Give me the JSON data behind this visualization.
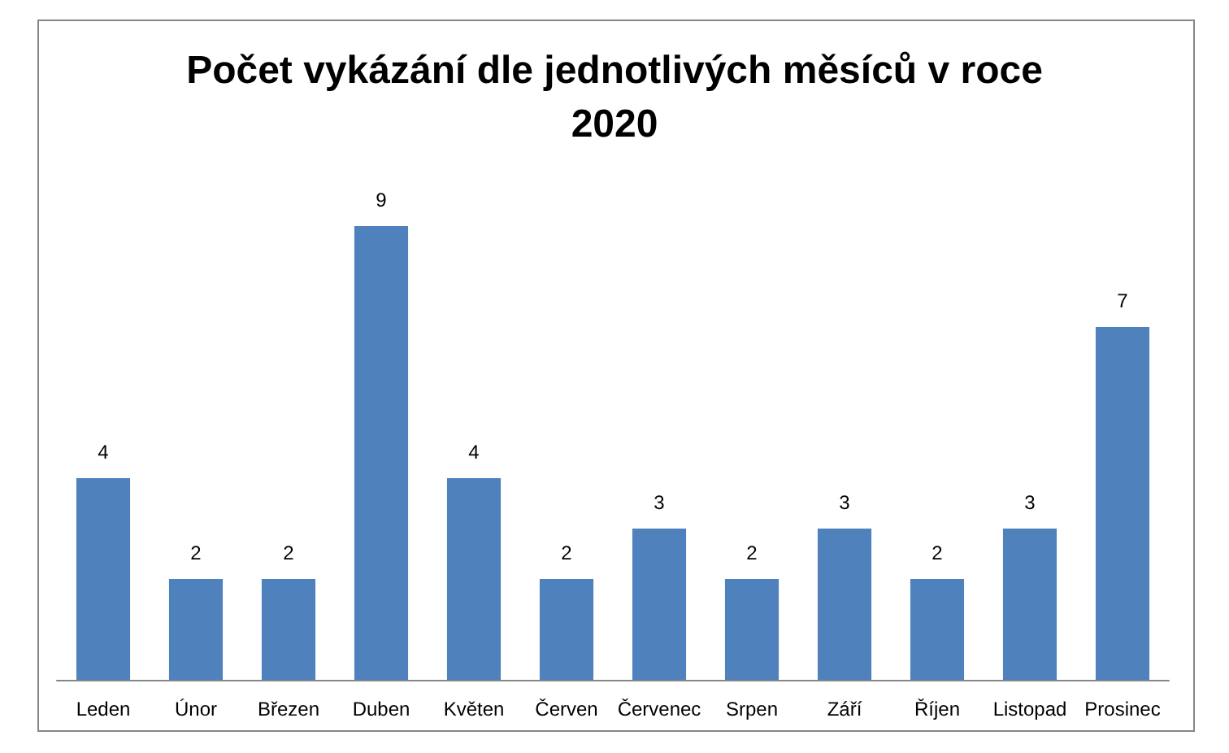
{
  "chart_data": {
    "type": "bar",
    "title": "Počet vykázání dle jednotlivých měsíců v roce 2020",
    "categories": [
      "Leden",
      "Únor",
      "Březen",
      "Duben",
      "Květen",
      "Červen",
      "Červenec",
      "Srpen",
      "Září",
      "Říjen",
      "Listopad",
      "Prosinec"
    ],
    "values": [
      4,
      2,
      2,
      9,
      4,
      2,
      3,
      2,
      3,
      2,
      3,
      7
    ],
    "color": "#4f81bd",
    "data_labels": true,
    "tick_labels": "x"
  }
}
